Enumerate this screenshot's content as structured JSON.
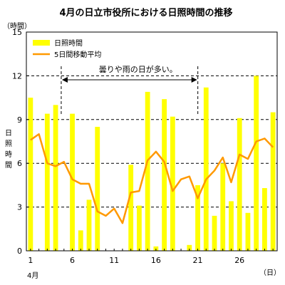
{
  "chart_data": {
    "type": "bar+line",
    "title": "4月の日立市役所における日照時間の推移",
    "y_unit": "（時間）",
    "y_axis_title": [
      "日",
      "照",
      "時",
      "間"
    ],
    "x_unit": "（日）",
    "month_label": "4月",
    "ylim": [
      0,
      15
    ],
    "yticks": [
      0,
      3,
      6,
      9,
      12,
      15
    ],
    "xtick_labels": [
      1,
      6,
      11,
      16,
      21,
      26
    ],
    "grid": "horizontal dashed",
    "legend_position": "top-left",
    "days": [
      1,
      2,
      3,
      4,
      5,
      6,
      7,
      8,
      9,
      10,
      11,
      12,
      13,
      14,
      15,
      16,
      17,
      18,
      19,
      20,
      21,
      22,
      23,
      24,
      25,
      26,
      27,
      28,
      29,
      30
    ],
    "series": [
      {
        "name": "日照時間",
        "type": "bar",
        "color": "#FFFF00",
        "values": [
          10.5,
          0,
          9.4,
          10.0,
          0,
          9.4,
          1.4,
          3.5,
          8.5,
          0,
          0,
          0,
          5.9,
          3.1,
          10.9,
          0.3,
          10.4,
          9.2,
          0,
          0.4,
          4.5,
          11.2,
          2.4,
          6.0,
          3.4,
          9.1,
          2.6,
          12.0,
          4.3,
          9.5
        ]
      },
      {
        "name": "5日間移動平均",
        "type": "line",
        "color": "#FF9900",
        "values": [
          7.6,
          8.0,
          6.0,
          5.8,
          6.1,
          4.9,
          4.6,
          4.6,
          2.7,
          2.4,
          2.9,
          1.9,
          4.0,
          4.1,
          6.2,
          6.8,
          6.1,
          4.1,
          4.9,
          5.1,
          3.6,
          4.9,
          5.5,
          6.4,
          4.7,
          6.6,
          6.3,
          7.5,
          7.7,
          7.1
        ]
      }
    ],
    "annotation": {
      "text": "曇りや雨の日が多い。",
      "from_day": 5,
      "to_day": 21
    }
  }
}
